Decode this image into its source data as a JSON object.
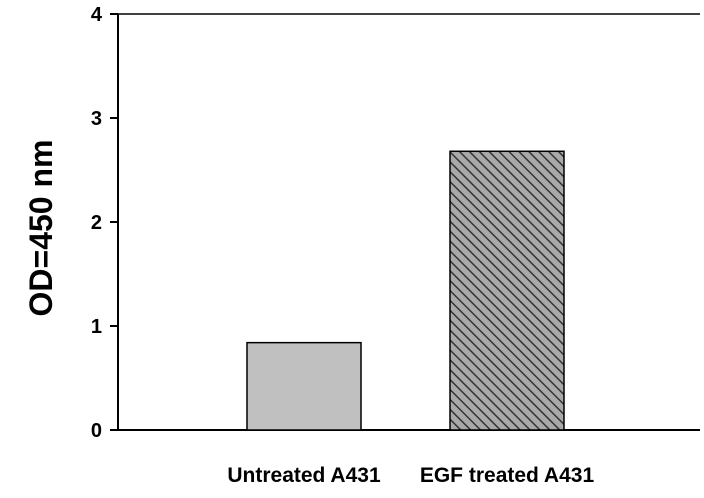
{
  "chart_data": {
    "type": "bar",
    "title": "",
    "xlabel": "",
    "ylabel": "OD=450 nm",
    "categories": [
      "Untreated A431",
      "EGF treated A431"
    ],
    "values": [
      0.84,
      2.68
    ],
    "ylim": [
      0,
      4
    ],
    "yticks": [
      "0",
      "1",
      "2",
      "3",
      "4"
    ],
    "grid": false,
    "legend": "none",
    "bar_styles": [
      {
        "fill": "#c0c0c0",
        "pattern": "solid"
      },
      {
        "fill": "#808080",
        "pattern": "diagonal-hatch"
      }
    ]
  }
}
